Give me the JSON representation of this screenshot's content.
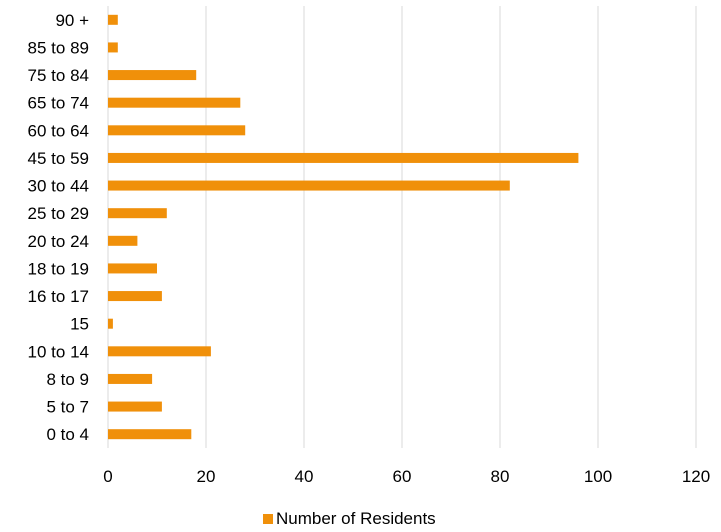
{
  "chart_data": {
    "type": "bar",
    "orientation": "horizontal",
    "categories": [
      "0 to 4",
      "5 to 7",
      "8 to 9",
      "10 to 14",
      "15",
      "16 to 17",
      "18 to 19",
      "20 to 24",
      "25 to 29",
      "30 to 44",
      "45 to 59",
      "60 to 64",
      "65 to 74",
      "75 to 84",
      "85 to 89",
      "90 +"
    ],
    "series": [
      {
        "name": "Number of Residents",
        "values": [
          17,
          11,
          9,
          21,
          1,
          11,
          10,
          6,
          12,
          82,
          96,
          28,
          27,
          18,
          2,
          2
        ]
      }
    ],
    "xlim": [
      0,
      120
    ],
    "xticks": [
      0,
      20,
      40,
      60,
      80,
      100,
      120
    ],
    "xtick_labels": [
      "0",
      "20",
      "40",
      "60",
      "80",
      "100",
      "120"
    ],
    "grid": "vertical",
    "legend_position": "bottom",
    "bar_color": "#F0900A",
    "grid_color": "#D9D9D9"
  }
}
